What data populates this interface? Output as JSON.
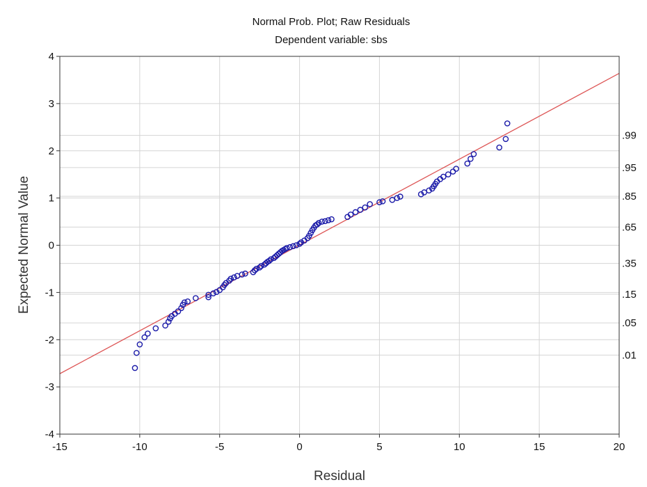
{
  "chart_data": {
    "type": "scatter",
    "title": "Normal Prob. Plot; Raw Residuals",
    "subtitle": "Dependent variable: sbs",
    "xlabel": "Residual",
    "ylabel": "Expected Normal Value",
    "xlim": [
      -15,
      20
    ],
    "ylim": [
      -4,
      4
    ],
    "x_ticks": [
      -15,
      -10,
      -5,
      0,
      5,
      10,
      15,
      20
    ],
    "y_ticks": [
      -4,
      -3,
      -2,
      -1,
      0,
      1,
      2,
      3,
      4
    ],
    "grid": true,
    "colors": {
      "points": "#1a1aa8",
      "fit_line": "#dd5555",
      "grid": "#d4d4d4",
      "frame": "#333333"
    },
    "fit_line": {
      "x": [
        -15,
        20
      ],
      "y": [
        -2.72,
        3.64
      ]
    },
    "probability_axis": {
      "side": "right",
      "labels": [
        ".99",
        ".95",
        ".85",
        ".65",
        ".35",
        ".15",
        ".05",
        ".01"
      ],
      "values": [
        2.326,
        1.645,
        1.036,
        0.385,
        -0.385,
        -1.036,
        -1.645,
        -2.326
      ]
    },
    "series": [
      {
        "marker": "open-circle",
        "x": [
          -10.3,
          -10.2,
          -10.0,
          -9.7,
          -9.5,
          -9.0,
          -8.4,
          -8.2,
          -8.1,
          -8.0,
          -7.8,
          -7.6,
          -7.4,
          -7.3,
          -7.2,
          -7.0,
          -6.5,
          -5.7,
          -5.7,
          -5.4,
          -5.2,
          -5.0,
          -4.8,
          -4.7,
          -4.6,
          -4.4,
          -4.3,
          -4.1,
          -3.9,
          -3.6,
          -3.4,
          -2.9,
          -2.8,
          -2.7,
          -2.5,
          -2.4,
          -2.2,
          -2.1,
          -2.0,
          -1.9,
          -1.8,
          -1.6,
          -1.5,
          -1.4,
          -1.3,
          -1.2,
          -1.1,
          -1.0,
          -0.9,
          -0.8,
          -0.6,
          -0.4,
          -0.2,
          0.0,
          0.1,
          0.3,
          0.5,
          0.6,
          0.7,
          0.8,
          0.9,
          1.0,
          1.1,
          1.2,
          1.4,
          1.6,
          1.8,
          2.0,
          3.0,
          3.2,
          3.5,
          3.8,
          4.1,
          4.4,
          5.0,
          5.2,
          5.8,
          6.1,
          6.3,
          7.6,
          7.8,
          8.1,
          8.3,
          8.4,
          8.5,
          8.6,
          8.8,
          9.0,
          9.3,
          9.6,
          9.8,
          10.5,
          10.7,
          10.9,
          12.5,
          12.9,
          13.0
        ],
        "y": [
          -2.6,
          -2.28,
          -2.1,
          -1.95,
          -1.87,
          -1.76,
          -1.7,
          -1.62,
          -1.55,
          -1.5,
          -1.45,
          -1.4,
          -1.33,
          -1.26,
          -1.21,
          -1.19,
          -1.12,
          -1.1,
          -1.05,
          -1.02,
          -0.99,
          -0.95,
          -0.89,
          -0.84,
          -0.8,
          -0.75,
          -0.71,
          -0.68,
          -0.65,
          -0.62,
          -0.6,
          -0.57,
          -0.53,
          -0.5,
          -0.47,
          -0.44,
          -0.41,
          -0.38,
          -0.35,
          -0.33,
          -0.3,
          -0.27,
          -0.24,
          -0.21,
          -0.18,
          -0.15,
          -0.12,
          -0.1,
          -0.08,
          -0.06,
          -0.04,
          -0.02,
          0.0,
          0.03,
          0.06,
          0.1,
          0.15,
          0.2,
          0.26,
          0.32,
          0.37,
          0.42,
          0.44,
          0.47,
          0.5,
          0.51,
          0.53,
          0.55,
          0.6,
          0.65,
          0.7,
          0.75,
          0.8,
          0.87,
          0.91,
          0.93,
          0.96,
          1.0,
          1.03,
          1.08,
          1.12,
          1.16,
          1.2,
          1.25,
          1.3,
          1.35,
          1.4,
          1.45,
          1.5,
          1.56,
          1.62,
          1.73,
          1.83,
          1.93,
          2.07,
          2.25,
          2.58
        ]
      }
    ]
  }
}
